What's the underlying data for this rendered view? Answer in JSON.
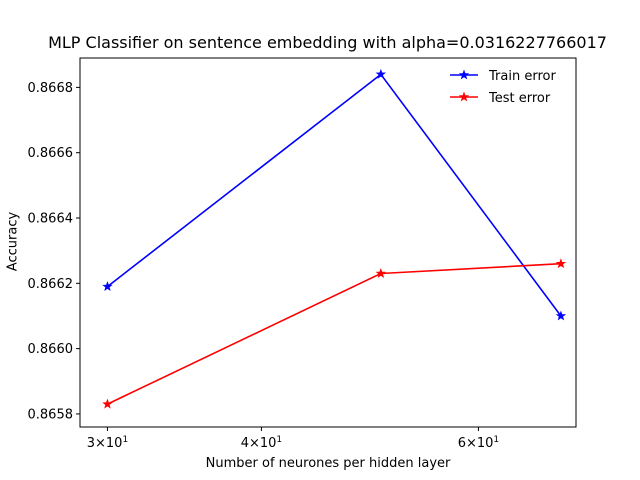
{
  "chart_data": {
    "type": "line",
    "title": "MLP Classifier on sentence embedding with alpha=0.0316227766017",
    "xlabel": "Number of neurones per hidden layer",
    "ylabel": "Accuracy",
    "x_scale": "log",
    "xlim": [
      28.5,
      72.0
    ],
    "ylim": [
      0.86576,
      0.86689
    ],
    "x": [
      30,
      50,
      70
    ],
    "x_ticks": [
      {
        "value": 30,
        "base": "3",
        "exp": "1"
      },
      {
        "value": 40,
        "base": "4",
        "exp": "1"
      },
      {
        "value": 60,
        "base": "6",
        "exp": "1"
      }
    ],
    "y_ticks": [
      "0.8658",
      "0.8660",
      "0.8662",
      "0.8664",
      "0.8666",
      "0.8668"
    ],
    "y_tick_values": [
      0.8658,
      0.866,
      0.8662,
      0.8664,
      0.8666,
      0.8668
    ],
    "series": [
      {
        "name": "Train error",
        "color": "#0000ff",
        "marker": "star",
        "values": [
          0.86619,
          0.86684,
          0.8661
        ]
      },
      {
        "name": "Test error",
        "color": "#ff0000",
        "marker": "star",
        "values": [
          0.86583,
          0.86623,
          0.86626
        ]
      }
    ],
    "legend_position": "top-right",
    "grid": false
  }
}
